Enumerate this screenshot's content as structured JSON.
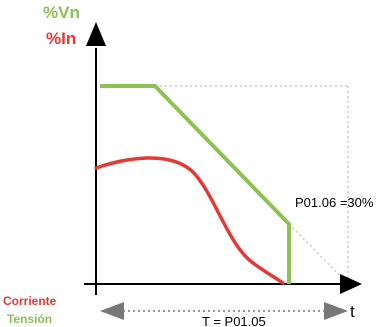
{
  "axes": {
    "y_label_voltage": "%Vn",
    "y_label_current": "%In",
    "x_label": "t"
  },
  "annotations": {
    "percent_label": "P01.06 =30%",
    "time_label": "T = P01.05"
  },
  "legend": {
    "current": "Corriente",
    "voltage": "Tensión"
  },
  "colors": {
    "voltage": "#8dc153",
    "current": "#e53935",
    "axis": "#000000",
    "guide": "#c8c8c8",
    "arrow": "#777777"
  }
}
